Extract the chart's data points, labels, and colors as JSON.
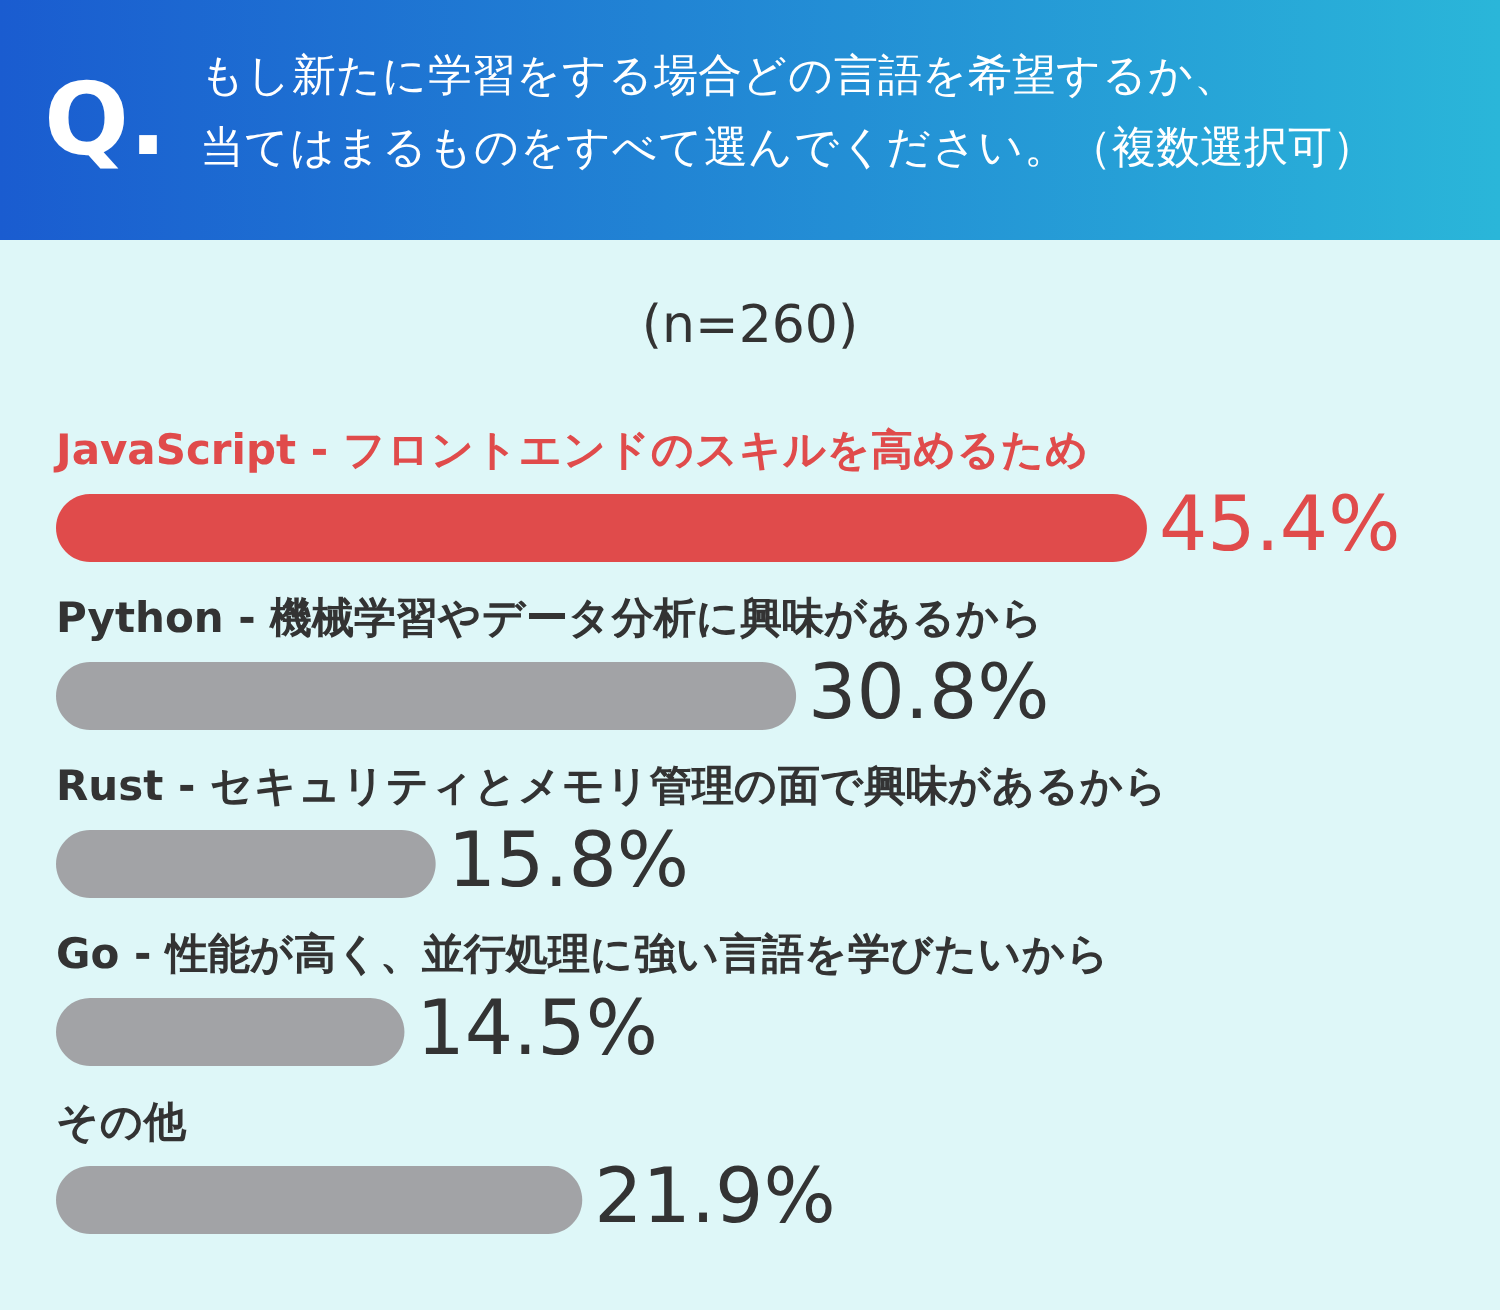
{
  "chart_data": {
    "type": "bar",
    "orientation": "horizontal",
    "title": "もし新たに学習をする場合どの言語を希望するか、当てはまるものをすべて選んでください。（複数選択可）",
    "subtitle": "(n=260)",
    "annotations": [
      "Q."
    ],
    "categories": [
      "JavaScript - フロントエンドのスキルを高めるため",
      "Python - 機械学習やデータ分析に興味があるから",
      "Rust - セキュリティとメモリ管理の面で興味があるから",
      "Go - 性能が高く、並行処理に強い言語を学びたいから",
      "その他"
    ],
    "values": [
      45.4,
      30.8,
      15.8,
      14.5,
      21.9
    ],
    "colors": [
      "#e04b4b",
      "#a2a3a6",
      "#a2a3a6",
      "#a2a3a6",
      "#a2a3a6"
    ],
    "value_labels": [
      "45.4%",
      "30.8%",
      "15.8%",
      "14.5%",
      "21.9%"
    ]
  }
}
